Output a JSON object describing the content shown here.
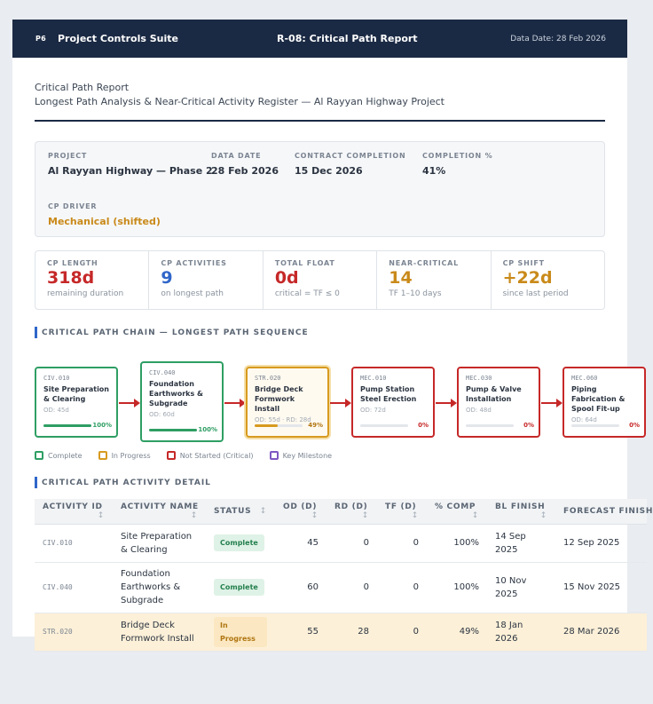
{
  "header": {
    "logo": "P6",
    "app_name": "Project Controls Suite",
    "report_code": "R-08: Critical Path Report",
    "data_date": "Data Date: 28 Feb 2026"
  },
  "report": {
    "title": "Critical Path Report",
    "subtitle": "Longest Path Analysis & Near-Critical Activity Register — Al Rayyan Highway Project"
  },
  "info": {
    "project_label": "PROJECT",
    "project_value": "Al Rayyan Highway — Phase 2",
    "data_date_label": "DATA DATE",
    "data_date_value": "28 Feb 2026",
    "contract_label": "CONTRACT COMPLETION",
    "contract_value": "15 Dec 2026",
    "completion_label": "COMPLETION %",
    "completion_value": "41%",
    "driver_label": "CP DRIVER",
    "driver_value": "Mechanical (shifted)"
  },
  "kpis": [
    {
      "label": "CP LENGTH",
      "value": "318d",
      "sub": "remaining duration",
      "color": "#c62828"
    },
    {
      "label": "CP ACTIVITIES",
      "value": "9",
      "sub": "on longest path",
      "color": "#2f66c9"
    },
    {
      "label": "TOTAL FLOAT",
      "value": "0d",
      "sub": "critical = TF ≤ 0",
      "color": "#c62828"
    },
    {
      "label": "NEAR-CRITICAL",
      "value": "14",
      "sub": "TF 1–10 days",
      "color": "#c98a1a"
    },
    {
      "label": "CP SHIFT",
      "value": "+22d",
      "sub": "since last period",
      "color": "#c98a1a"
    }
  ],
  "chain_section_title": "CRITICAL PATH CHAIN — LONGEST PATH SEQUENCE",
  "chain": [
    {
      "id": "CIV.010",
      "name": "Site Preparation & Clearing",
      "meta": "OD: 45d",
      "pct_label": "100%",
      "pct": 100,
      "status": "green"
    },
    {
      "id": "CIV.040",
      "name": "Foundation Earthworks & Subgrade",
      "meta": "OD: 60d",
      "pct_label": "100%",
      "pct": 100,
      "status": "green"
    },
    {
      "id": "STR.020",
      "name": "Bridge Deck Formwork Install",
      "meta": "OD: 55d · RD: 28d",
      "pct_label": "49%",
      "pct": 49,
      "status": "amber"
    },
    {
      "id": "MEC.010",
      "name": "Pump Station Steel Erection",
      "meta": "OD: 72d",
      "pct_label": "0%",
      "pct": 0,
      "status": "red"
    },
    {
      "id": "MEC.030",
      "name": "Pump & Valve Installation",
      "meta": "OD: 48d",
      "pct_label": "0%",
      "pct": 0,
      "status": "red"
    },
    {
      "id": "MEC.060",
      "name": "Piping Fabrication & Spool Fit-up",
      "meta": "OD: 64d",
      "pct_label": "0%",
      "pct": 0,
      "status": "red"
    }
  ],
  "legend": {
    "complete": "Complete",
    "progress": "In Progress",
    "not_started": "Not Started (Critical)",
    "milestone": "Key Milestone"
  },
  "detail_section_title": "CRITICAL PATH ACTIVITY DETAIL",
  "table": {
    "headers": [
      "ACTIVITY ID",
      "ACTIVITY NAME",
      "STATUS",
      "OD (D)",
      "RD (D)",
      "TF (D)",
      "% COMP",
      "BL FINISH",
      "FORECAST FINISH"
    ],
    "rows": [
      {
        "id": "CIV.010",
        "name": "Site Preparation & Clearing",
        "status": "Complete",
        "od": "45",
        "rd": "0",
        "tf": "0",
        "comp": "100%",
        "bl": "14 Sep 2025",
        "forecast": "12 Sep 2025"
      },
      {
        "id": "CIV.040",
        "name": "Foundation Earthworks & Subgrade",
        "status": "Complete",
        "od": "60",
        "rd": "0",
        "tf": "0",
        "comp": "100%",
        "bl": "10 Nov 2025",
        "forecast": "15 Nov 2025"
      },
      {
        "id": "STR.020",
        "name": "Bridge Deck Formwork Install",
        "status": "In Progress",
        "od": "55",
        "rd": "28",
        "tf": "0",
        "comp": "49%",
        "bl": "18 Jan 2026",
        "forecast": "28 Mar 2026"
      }
    ]
  },
  "colors": {
    "navy": "#1b2a44",
    "critical": "#c62828",
    "complete": "#2e9e63",
    "progress": "#d79a1f",
    "milestone": "#7e57c2",
    "accent": "#2f66c9"
  }
}
